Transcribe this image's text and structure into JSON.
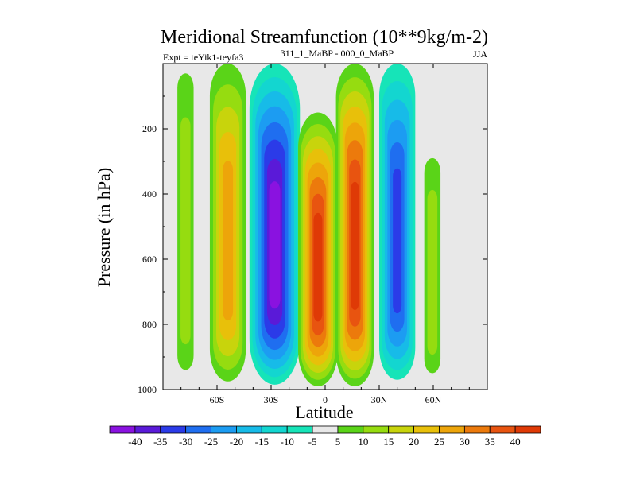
{
  "chart_data": {
    "type": "contour",
    "title": "Meridional Streamfunction (10**9kg/m-2)",
    "subtitle_left": "Expt = teYik1-teyfa3",
    "subtitle_center": "311_1_MaBP - 000_0_MaBP",
    "season": "JJA",
    "xlabel": "Latitude",
    "ylabel": "Pressure (in hPa)",
    "xlim": [
      -90,
      90
    ],
    "ylim": [
      1000,
      0
    ],
    "x_ticks": [
      {
        "value": -60,
        "label": "60S"
      },
      {
        "value": -30,
        "label": "30S"
      },
      {
        "value": 0,
        "label": "0"
      },
      {
        "value": 30,
        "label": "30N"
      },
      {
        "value": 60,
        "label": "60N"
      }
    ],
    "y_ticks": [
      {
        "value": 200,
        "label": "200"
      },
      {
        "value": 400,
        "label": "400"
      },
      {
        "value": 600,
        "label": "600"
      },
      {
        "value": 800,
        "label": "800"
      },
      {
        "value": 1000,
        "label": "1000"
      }
    ],
    "levels": [
      -40,
      -35,
      -30,
      -25,
      -20,
      -15,
      -10,
      -5,
      5,
      10,
      15,
      20,
      25,
      30,
      35,
      40
    ],
    "level_labels": [
      "-40",
      "-35",
      "-30",
      "-25",
      "-20",
      "-15",
      "-10",
      "-5",
      "5",
      "10",
      "15",
      "20",
      "25",
      "30",
      "35",
      "40"
    ],
    "colors": [
      "#8a12e0",
      "#5a1ad8",
      "#2b3be8",
      "#1f6ef0",
      "#1c9cf2",
      "#17bbe8",
      "#13d6d0",
      "#16e4b8",
      "#e8e8e8",
      "#5ad418",
      "#96dc10",
      "#c8d40c",
      "#e8c00a",
      "#eda50a",
      "#ec7a0c",
      "#e85410",
      "#df3a06"
    ],
    "fields": [
      {
        "name": "positive-cell-far-south",
        "sign": 1,
        "peak": 11,
        "x0": -82,
        "x1": -73,
        "p_top": 30,
        "p_bot": 940
      },
      {
        "name": "positive-cell-southern-ferrel",
        "sign": 1,
        "peak": 27,
        "x0": -64,
        "x1": -44,
        "p_top": 0,
        "p_bot": 975
      },
      {
        "name": "negative-cell-southern-hadley",
        "sign": -1,
        "peak": 40,
        "x0": -42,
        "x1": -14,
        "p_top": 0,
        "p_bot": 985
      },
      {
        "name": "positive-cell-equatorial-west",
        "sign": 1,
        "peak": 48,
        "x0": -15,
        "x1": 7,
        "p_top": 150,
        "p_bot": 990
      },
      {
        "name": "positive-cell-equatorial-east",
        "sign": 1,
        "peak": 48,
        "x0": 6,
        "x1": 27,
        "p_top": 0,
        "p_bot": 990
      },
      {
        "name": "negative-cell-northern",
        "sign": -1,
        "peak": 32,
        "x0": 30,
        "x1": 50,
        "p_top": 0,
        "p_bot": 970
      },
      {
        "name": "positive-cell-far-north",
        "sign": 1,
        "peak": 11,
        "x0": 55,
        "x1": 64,
        "p_top": 290,
        "p_bot": 950
      }
    ]
  }
}
